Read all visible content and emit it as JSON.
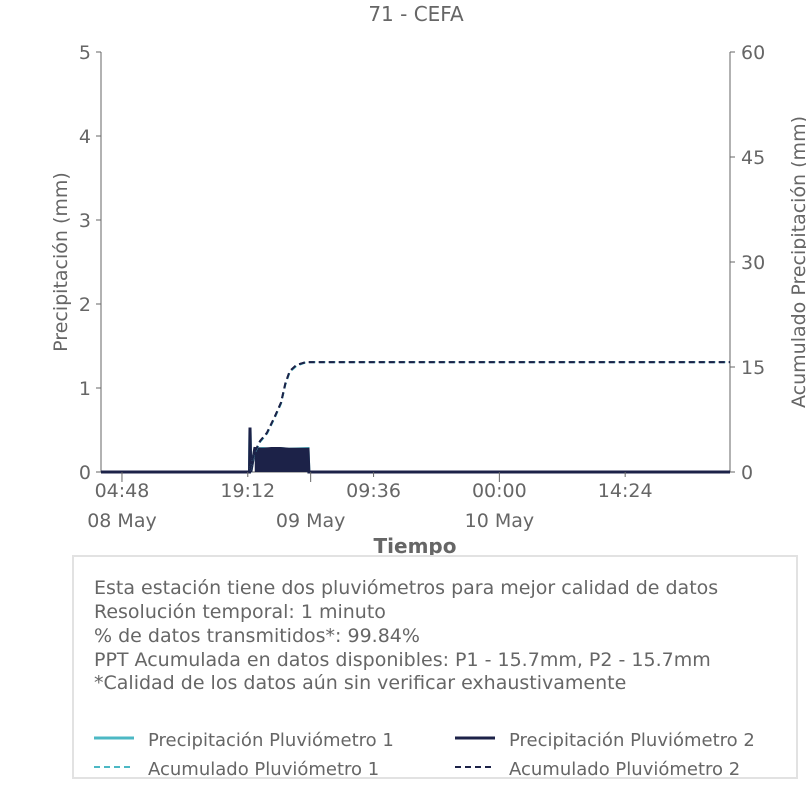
{
  "chart_data": {
    "type": "line",
    "title": "71 - CEFA",
    "xlabel": "Tiempo",
    "ylabel_left": "Precipitación (mm)",
    "ylabel_right": "Acumulado Precipitación (mm)",
    "ylim_left": [
      0,
      5
    ],
    "ylim_right": [
      0,
      60
    ],
    "yticks_left": [
      "0",
      "1",
      "2",
      "3",
      "4",
      "5"
    ],
    "yticks_right": [
      "0",
      "15",
      "30",
      "45",
      "60"
    ],
    "xlim_hours": [
      0,
      72
    ],
    "xticks": [
      {
        "hour": 2.4,
        "label": "04:48",
        "date": "08 May"
      },
      {
        "hour": 16.8,
        "label": "19:12",
        "date": ""
      },
      {
        "hour": 24,
        "label": "",
        "date": "09 May"
      },
      {
        "hour": 31.2,
        "label": "09:36",
        "date": ""
      },
      {
        "hour": 45.6,
        "label": "00:00",
        "date": "10 May"
      },
      {
        "hour": 60,
        "label": "14:24",
        "date": ""
      }
    ],
    "grid": false,
    "colors": {
      "p1": "#4cb8c4",
      "p2": "#1c2248",
      "axis": "#666666"
    },
    "series": [
      {
        "name": "Precipitación Pluviómetro 1",
        "axis": "left",
        "style": "solid",
        "points": [
          [
            0,
            0
          ],
          [
            17,
            0
          ],
          [
            17.05,
            0.51
          ],
          [
            17.15,
            0
          ],
          [
            17.6,
            0.27
          ],
          [
            18.5,
            0.28
          ],
          [
            19.5,
            0.27
          ],
          [
            20.5,
            0.28
          ],
          [
            21.5,
            0.27
          ],
          [
            23.7,
            0.28
          ],
          [
            23.8,
            0
          ],
          [
            72,
            0
          ]
        ]
      },
      {
        "name": "Precipitación Pluviómetro 2",
        "axis": "left",
        "style": "solid",
        "points": [
          [
            0,
            0
          ],
          [
            17,
            0
          ],
          [
            17.05,
            0.53
          ],
          [
            17.15,
            0
          ],
          [
            17.6,
            0.28
          ],
          [
            18.5,
            0.27
          ],
          [
            19.5,
            0.28
          ],
          [
            20.5,
            0.28
          ],
          [
            21.5,
            0.27
          ],
          [
            23.7,
            0.27
          ],
          [
            23.8,
            0
          ],
          [
            72,
            0
          ]
        ]
      },
      {
        "name": "Acumulado Pluviómetro 1",
        "axis": "right",
        "style": "dashed",
        "points": [
          [
            0,
            0
          ],
          [
            17,
            0
          ],
          [
            17.5,
            2.5
          ],
          [
            18.2,
            4.3
          ],
          [
            19,
            5.5
          ],
          [
            19.9,
            7.8
          ],
          [
            20.6,
            9.8
          ],
          [
            21.1,
            12.5
          ],
          [
            21.6,
            14.3
          ],
          [
            22.4,
            15.2
          ],
          [
            23.5,
            15.7
          ],
          [
            72,
            15.7
          ]
        ]
      },
      {
        "name": "Acumulado Pluviómetro 2",
        "axis": "right",
        "style": "dashed",
        "points": [
          [
            0,
            0
          ],
          [
            17,
            0
          ],
          [
            17.5,
            2.6
          ],
          [
            18.2,
            4.4
          ],
          [
            19,
            5.6
          ],
          [
            19.9,
            7.9
          ],
          [
            20.6,
            9.9
          ],
          [
            21.1,
            12.6
          ],
          [
            21.6,
            14.4
          ],
          [
            22.4,
            15.3
          ],
          [
            23.5,
            15.7
          ],
          [
            72,
            15.7
          ]
        ]
      }
    ]
  },
  "info": {
    "lines": [
      "Esta estación tiene dos pluviómetros para mejor calidad de datos",
      "Resolución temporal: 1 minuto",
      "% de datos transmitidos*: 99.84%",
      "PPT Acumulada en datos disponibles: P1 - 15.7mm, P2 - 15.7mm",
      "*Calidad de los datos aún sin verificar exhaustivamente"
    ]
  },
  "legend": {
    "items": [
      {
        "label": "Precipitación Pluviómetro 1",
        "color": "#4cb8c4",
        "style": "solid"
      },
      {
        "label": "Precipitación Pluviómetro 2",
        "color": "#1c2248",
        "style": "solid"
      },
      {
        "label": "Acumulado Pluviómetro 1",
        "color": "#4cb8c4",
        "style": "dashed"
      },
      {
        "label": "Acumulado Pluviómetro 2",
        "color": "#1c2248",
        "style": "dashed"
      }
    ]
  }
}
